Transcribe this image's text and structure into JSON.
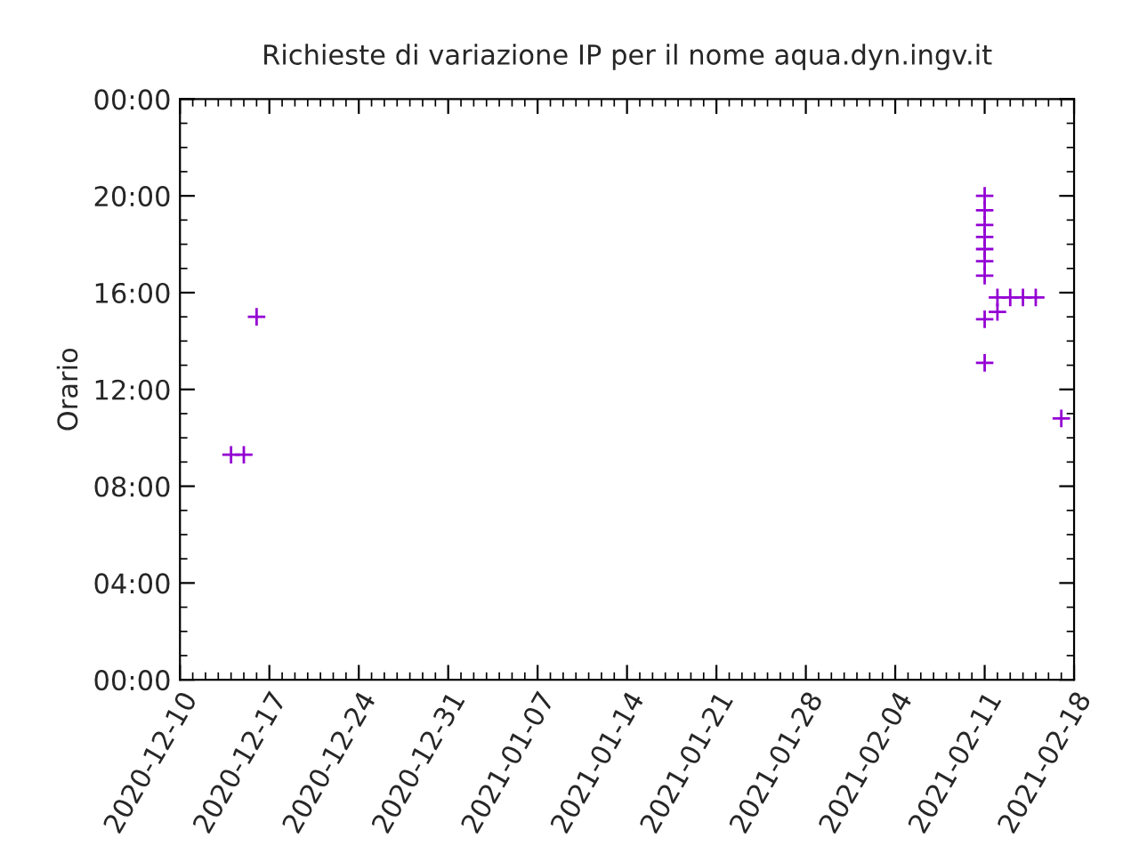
{
  "chart_data": {
    "type": "scatter",
    "title": "Richieste di variazione IP per il nome aqua.dyn.ingv.it",
    "ylabel": "Orario",
    "x": [
      "2020-12-14",
      "2020-12-15",
      "2020-12-16",
      "2021-02-11",
      "2021-02-11",
      "2021-02-11",
      "2021-02-11",
      "2021-02-11",
      "2021-02-11",
      "2021-02-11",
      "2021-02-11",
      "2021-02-11",
      "2021-02-12",
      "2021-02-12",
      "2021-02-13",
      "2021-02-14",
      "2021-02-15",
      "2021-02-17"
    ],
    "series": [
      {
        "color": "#9400d3",
        "values": [
          9.3,
          9.3,
          15.0,
          20.0,
          19.4,
          18.8,
          18.3,
          17.8,
          17.3,
          16.7,
          14.9,
          13.1,
          15.8,
          15.2,
          15.8,
          15.8,
          15.8,
          10.8
        ]
      }
    ],
    "marker": "cross",
    "grid": false,
    "legend": false,
    "xlim": [
      "2020-12-10",
      "2021-02-18"
    ],
    "xticks": [
      "2020-12-10",
      "2020-12-17",
      "2020-12-24",
      "2020-12-31",
      "2021-01-07",
      "2021-01-14",
      "2021-01-21",
      "2021-01-28",
      "2021-02-04",
      "2021-02-11",
      "2021-02-18"
    ],
    "ylim": [
      0,
      24
    ],
    "yticks": [
      {
        "value": 0,
        "label": "00:00"
      },
      {
        "value": 4,
        "label": "04:00"
      },
      {
        "value": 8,
        "label": "08:00"
      },
      {
        "value": 12,
        "label": "12:00"
      },
      {
        "value": 16,
        "label": "16:00"
      },
      {
        "value": 20,
        "label": "20:00"
      },
      {
        "value": 24,
        "label": "00:00"
      }
    ]
  }
}
